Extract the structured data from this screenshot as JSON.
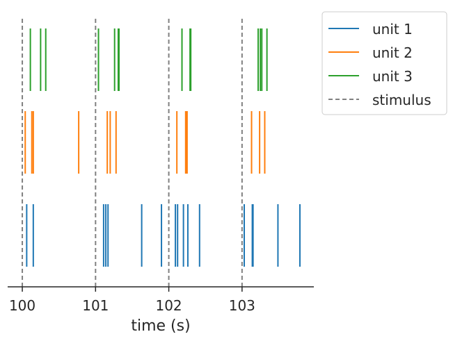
{
  "chart_data": {
    "type": "raster",
    "xlabel": "time (s)",
    "ylabel": "",
    "title": "",
    "xlim": [
      99.8,
      103.98
    ],
    "xticks": [
      100,
      101,
      102,
      103
    ],
    "x_tick_labels": [
      "100",
      "101",
      "102",
      "103"
    ],
    "grid": false,
    "legend_position": "upper-right-outside",
    "series": [
      {
        "name": "unit 1",
        "color": "#1f77b4",
        "row": 0,
        "spikes": [
          100.06,
          100.15,
          101.11,
          101.14,
          101.17,
          101.63,
          101.9,
          102.09,
          102.12,
          102.2,
          102.26,
          102.42,
          103.03,
          103.14,
          103.15,
          103.49,
          103.79
        ]
      },
      {
        "name": "unit 2",
        "color": "#ff7f0e",
        "row": 1,
        "spikes": [
          100.04,
          100.13,
          100.15,
          100.77,
          101.16,
          101.2,
          101.28,
          102.11,
          102.23,
          102.24,
          102.25,
          103.13,
          103.24,
          103.31
        ]
      },
      {
        "name": "unit 3",
        "color": "#2ca02c",
        "row": 2,
        "spikes": [
          100.11,
          100.25,
          100.32,
          101.04,
          101.26,
          101.31,
          101.32,
          102.18,
          102.29,
          102.3,
          103.22,
          103.25,
          103.27,
          103.34
        ]
      }
    ],
    "stimulus": {
      "name": "stimulus",
      "color": "#808080",
      "times": [
        100,
        101,
        102,
        103
      ]
    }
  }
}
